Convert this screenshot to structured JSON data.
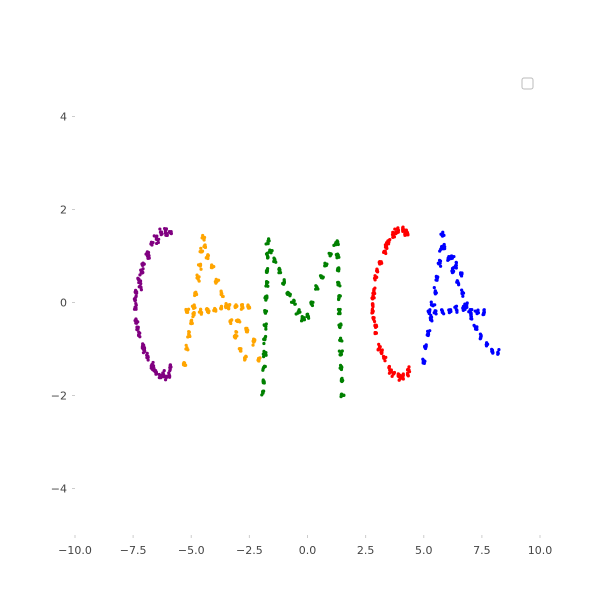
{
  "chart_data": {
    "type": "scatter",
    "title": "",
    "xlabel": "",
    "ylabel": "",
    "xlim": [
      -10,
      10
    ],
    "ylim": [
      -5,
      5
    ],
    "grid": false,
    "legend": {
      "placement": "top-right",
      "entries": []
    },
    "x_ticks": [
      -10.0,
      -7.5,
      -5.0,
      -2.5,
      0.0,
      2.5,
      5.0,
      7.5,
      10.0
    ],
    "x_tick_labels": [
      "−10.0",
      "−7.5",
      "−5.0",
      "−2.5",
      "0.0",
      "2.5",
      "5.0",
      "7.5",
      "10.0"
    ],
    "y_ticks": [
      4,
      2,
      0,
      -2,
      -4
    ],
    "y_tick_labels": [
      "4",
      "2",
      "0",
      "−2",
      "−4"
    ],
    "series": [
      {
        "color": "#800080",
        "letter": "C",
        "points": [
          [
            -5.9,
            1.5
          ],
          [
            -6.1,
            1.55
          ],
          [
            -6.3,
            1.5
          ],
          [
            -6.5,
            1.4
          ],
          [
            -6.7,
            1.25
          ],
          [
            -6.9,
            1.05
          ],
          [
            -7.1,
            0.8
          ],
          [
            -7.25,
            0.5
          ],
          [
            -7.35,
            0.2
          ],
          [
            -7.4,
            -0.1
          ],
          [
            -7.35,
            -0.4
          ],
          [
            -7.25,
            -0.7
          ],
          [
            -7.1,
            -0.95
          ],
          [
            -6.9,
            -1.15
          ],
          [
            -6.7,
            -1.35
          ],
          [
            -6.5,
            -1.5
          ],
          [
            -6.3,
            -1.58
          ],
          [
            -6.1,
            -1.6
          ],
          [
            -5.95,
            -1.55
          ],
          [
            -5.9,
            -1.4
          ],
          [
            -6.05,
            1.45
          ],
          [
            -6.45,
            1.35
          ],
          [
            -6.85,
            1.0
          ],
          [
            -7.2,
            0.35
          ],
          [
            -7.3,
            -0.55
          ],
          [
            -7.0,
            -1.05
          ],
          [
            -6.6,
            -1.42
          ],
          [
            -6.2,
            -1.55
          ],
          [
            -7.4,
            0.05
          ],
          [
            -7.15,
            0.65
          ]
        ]
      },
      {
        "color": "#ffa500",
        "letter": "A",
        "points": [
          [
            -4.5,
            1.4
          ],
          [
            -4.55,
            1.1
          ],
          [
            -4.6,
            0.8
          ],
          [
            -4.7,
            0.5
          ],
          [
            -4.8,
            0.2
          ],
          [
            -4.9,
            -0.1
          ],
          [
            -5.0,
            -0.4
          ],
          [
            -5.1,
            -0.7
          ],
          [
            -5.2,
            -1.0
          ],
          [
            -5.3,
            -1.3
          ],
          [
            -4.4,
            1.2
          ],
          [
            -4.3,
            1.0
          ],
          [
            -4.1,
            0.75
          ],
          [
            -3.9,
            0.45
          ],
          [
            -3.7,
            0.2
          ],
          [
            -3.5,
            -0.1
          ],
          [
            -3.3,
            -0.4
          ],
          [
            -3.1,
            -0.7
          ],
          [
            -2.9,
            -1.0
          ],
          [
            -2.7,
            -1.2
          ],
          [
            -5.2,
            -0.2
          ],
          [
            -4.9,
            -0.25
          ],
          [
            -4.6,
            -0.2
          ],
          [
            -4.3,
            -0.2
          ],
          [
            -4.0,
            -0.15
          ],
          [
            -3.7,
            -0.12
          ],
          [
            -3.4,
            -0.1
          ],
          [
            -3.1,
            -0.1
          ],
          [
            -2.8,
            -0.1
          ],
          [
            -2.5,
            -0.1
          ],
          [
            -3.0,
            -0.4
          ],
          [
            -2.6,
            -0.6
          ],
          [
            -2.3,
            -0.85
          ],
          [
            -2.1,
            -1.2
          ]
        ]
      },
      {
        "color": "#008000",
        "letter": "M",
        "points": [
          [
            -1.7,
            1.3
          ],
          [
            -1.72,
            1.0
          ],
          [
            -1.74,
            0.7
          ],
          [
            -1.76,
            0.4
          ],
          [
            -1.78,
            0.1
          ],
          [
            -1.8,
            -0.2
          ],
          [
            -1.82,
            -0.5
          ],
          [
            -1.84,
            -0.8
          ],
          [
            -1.86,
            -1.1
          ],
          [
            -1.88,
            -1.4
          ],
          [
            -1.9,
            -1.7
          ],
          [
            -1.92,
            -1.95
          ],
          [
            -1.6,
            1.1
          ],
          [
            -1.4,
            0.9
          ],
          [
            -1.2,
            0.7
          ],
          [
            -1.0,
            0.45
          ],
          [
            -0.8,
            0.2
          ],
          [
            -0.6,
            0.0
          ],
          [
            -0.4,
            -0.2
          ],
          [
            -0.2,
            -0.35
          ],
          [
            0.0,
            -0.3
          ],
          [
            0.2,
            0.0
          ],
          [
            0.4,
            0.3
          ],
          [
            0.6,
            0.55
          ],
          [
            0.8,
            0.8
          ],
          [
            1.0,
            1.05
          ],
          [
            1.2,
            1.25
          ],
          [
            1.3,
            1.3
          ],
          [
            1.3,
            1.0
          ],
          [
            1.32,
            0.7
          ],
          [
            1.34,
            0.4
          ],
          [
            1.36,
            0.1
          ],
          [
            1.38,
            -0.2
          ],
          [
            1.4,
            -0.5
          ],
          [
            1.42,
            -0.8
          ],
          [
            1.44,
            -1.1
          ],
          [
            1.46,
            -1.4
          ],
          [
            1.48,
            -1.7
          ],
          [
            1.5,
            -2.0
          ]
        ]
      },
      {
        "color": "#ff0000",
        "letter": "C",
        "points": [
          [
            4.3,
            1.5
          ],
          [
            4.1,
            1.58
          ],
          [
            3.9,
            1.55
          ],
          [
            3.7,
            1.45
          ],
          [
            3.5,
            1.3
          ],
          [
            3.3,
            1.1
          ],
          [
            3.1,
            0.85
          ],
          [
            2.95,
            0.55
          ],
          [
            2.85,
            0.25
          ],
          [
            2.8,
            -0.05
          ],
          [
            2.85,
            -0.35
          ],
          [
            2.95,
            -0.65
          ],
          [
            3.1,
            -0.95
          ],
          [
            3.3,
            -1.2
          ],
          [
            3.5,
            -1.4
          ],
          [
            3.7,
            -1.52
          ],
          [
            3.9,
            -1.58
          ],
          [
            4.1,
            -1.6
          ],
          [
            4.3,
            -1.55
          ],
          [
            4.35,
            -1.45
          ],
          [
            4.2,
            1.52
          ],
          [
            3.8,
            1.5
          ],
          [
            3.4,
            1.2
          ],
          [
            3.0,
            0.7
          ],
          [
            2.82,
            0.1
          ],
          [
            2.9,
            -0.5
          ],
          [
            3.2,
            -1.08
          ],
          [
            3.6,
            -1.47
          ],
          [
            4.0,
            -1.6
          ],
          [
            2.8,
            -0.2
          ]
        ]
      },
      {
        "color": "#0000ff",
        "letter": "A",
        "points": [
          [
            5.8,
            1.45
          ],
          [
            5.75,
            1.15
          ],
          [
            5.7,
            0.85
          ],
          [
            5.6,
            0.55
          ],
          [
            5.5,
            0.25
          ],
          [
            5.4,
            -0.05
          ],
          [
            5.3,
            -0.35
          ],
          [
            5.2,
            -0.65
          ],
          [
            5.1,
            -0.95
          ],
          [
            5.0,
            -1.25
          ],
          [
            5.9,
            1.2
          ],
          [
            6.05,
            0.95
          ],
          [
            6.25,
            0.7
          ],
          [
            6.45,
            0.45
          ],
          [
            6.65,
            0.2
          ],
          [
            6.85,
            -0.05
          ],
          [
            7.05,
            -0.3
          ],
          [
            7.25,
            -0.55
          ],
          [
            7.45,
            -0.75
          ],
          [
            7.7,
            -0.9
          ],
          [
            7.95,
            -1.05
          ],
          [
            8.2,
            -1.1
          ],
          [
            5.2,
            -0.2
          ],
          [
            5.5,
            -0.2
          ],
          [
            5.8,
            -0.2
          ],
          [
            6.1,
            -0.18
          ],
          [
            6.4,
            -0.15
          ],
          [
            6.7,
            -0.15
          ],
          [
            7.0,
            -0.18
          ],
          [
            7.3,
            -0.2
          ],
          [
            7.6,
            -0.2
          ],
          [
            6.2,
            1.0
          ],
          [
            6.4,
            0.8
          ],
          [
            6.6,
            0.6
          ]
        ]
      }
    ]
  }
}
